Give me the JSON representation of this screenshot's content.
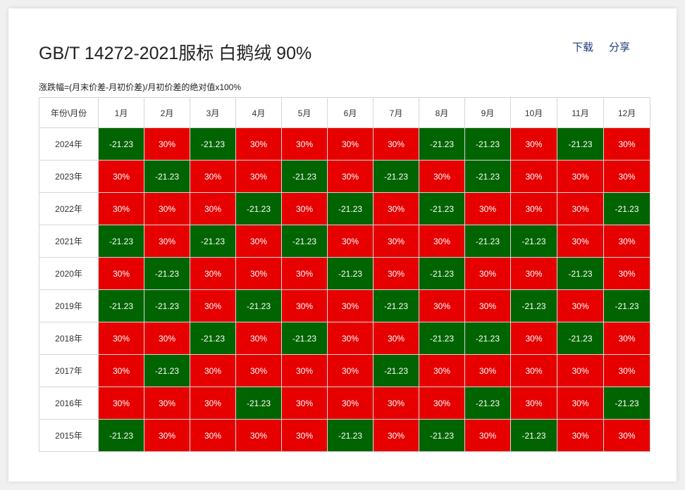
{
  "header": {
    "title": "GB/T 14272-2021服标 白鹅绒 90%",
    "subtitle": "涨跌幅=(月末价差-月初价差)/月初价差的绝对值x100%",
    "download_label": "下载",
    "share_label": "分享"
  },
  "colors": {
    "positive": "#e60000",
    "negative": "#006400",
    "link": "#1f3a7a"
  },
  "chart_data": {
    "type": "heatmap",
    "corner_label": "年份\\月份",
    "columns": [
      "1月",
      "2月",
      "3月",
      "4月",
      "5月",
      "6月",
      "7月",
      "8月",
      "9月",
      "10月",
      "11月",
      "12月"
    ],
    "rows": [
      {
        "year": "2024年",
        "values": [
          "-21.23",
          "30%",
          "-21.23",
          "30%",
          "30%",
          "30%",
          "30%",
          "-21.23",
          "-21.23",
          "30%",
          "-21.23",
          "30%"
        ]
      },
      {
        "year": "2023年",
        "values": [
          "30%",
          "-21.23",
          "30%",
          "30%",
          "-21.23",
          "30%",
          "-21.23",
          "30%",
          "-21.23",
          "30%",
          "30%",
          "30%"
        ]
      },
      {
        "year": "2022年",
        "values": [
          "30%",
          "30%",
          "30%",
          "-21.23",
          "30%",
          "-21.23",
          "30%",
          "-21.23",
          "30%",
          "30%",
          "30%",
          "-21.23"
        ]
      },
      {
        "year": "2021年",
        "values": [
          "-21.23",
          "30%",
          "-21.23",
          "30%",
          "-21.23",
          "30%",
          "30%",
          "30%",
          "-21.23",
          "-21.23",
          "30%",
          "30%"
        ]
      },
      {
        "year": "2020年",
        "values": [
          "30%",
          "-21.23",
          "30%",
          "30%",
          "30%",
          "-21.23",
          "30%",
          "-21.23",
          "30%",
          "30%",
          "-21.23",
          "30%"
        ]
      },
      {
        "year": "2019年",
        "values": [
          "-21.23",
          "-21.23",
          "30%",
          "-21.23",
          "30%",
          "30%",
          "-21.23",
          "30%",
          "30%",
          "-21.23",
          "30%",
          "-21.23"
        ]
      },
      {
        "year": "2018年",
        "values": [
          "30%",
          "30%",
          "-21.23",
          "30%",
          "-21.23",
          "30%",
          "30%",
          "-21.23",
          "-21.23",
          "30%",
          "-21.23",
          "30%"
        ]
      },
      {
        "year": "2017年",
        "values": [
          "30%",
          "-21.23",
          "30%",
          "30%",
          "30%",
          "30%",
          "-21.23",
          "30%",
          "30%",
          "30%",
          "30%",
          "30%"
        ]
      },
      {
        "year": "2016年",
        "values": [
          "30%",
          "30%",
          "30%",
          "-21.23",
          "30%",
          "30%",
          "30%",
          "30%",
          "-21.23",
          "30%",
          "30%",
          "-21.23"
        ]
      },
      {
        "year": "2015年",
        "values": [
          "-21.23",
          "30%",
          "30%",
          "30%",
          "30%",
          "-21.23",
          "30%",
          "-21.23",
          "30%",
          "-21.23",
          "30%",
          "30%"
        ]
      }
    ]
  }
}
